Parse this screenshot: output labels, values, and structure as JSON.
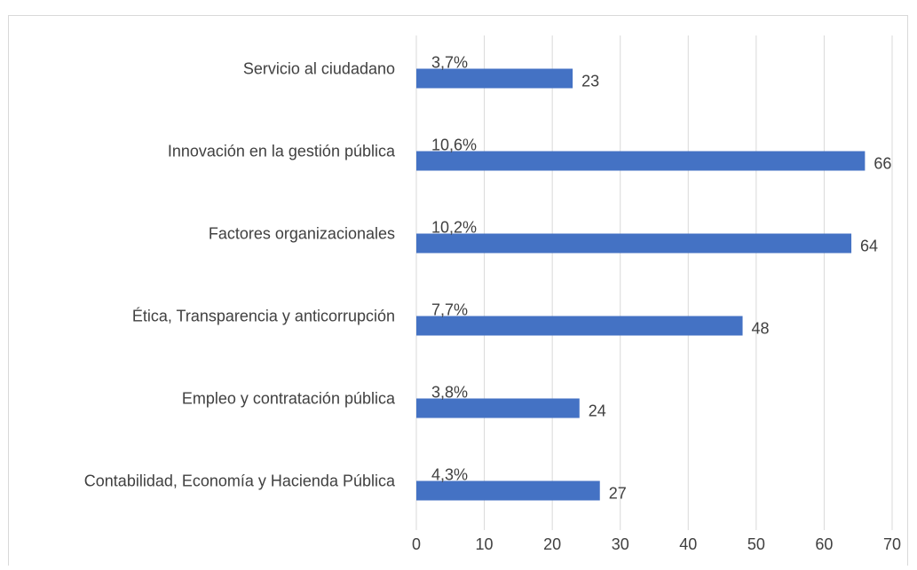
{
  "chart_data": {
    "type": "barh",
    "categories": [
      "Servicio al ciudadano",
      "Innovación en la gestión pública",
      "Factores organizacionales",
      "Ética, Transparencia y anticorrupción",
      "Empleo y contratación pública",
      "Contabilidad, Economía y Hacienda Pública"
    ],
    "values": [
      23,
      66,
      64,
      48,
      24,
      27
    ],
    "share_labels": [
      "3,7%",
      "10,6%",
      "10,2%",
      "7,7%",
      "3,8%",
      "4,3%"
    ],
    "color": "#4472c4",
    "xlim": [
      0,
      70
    ],
    "xticks": [
      0,
      10,
      20,
      30,
      40,
      50,
      60,
      70
    ],
    "grid": true
  }
}
